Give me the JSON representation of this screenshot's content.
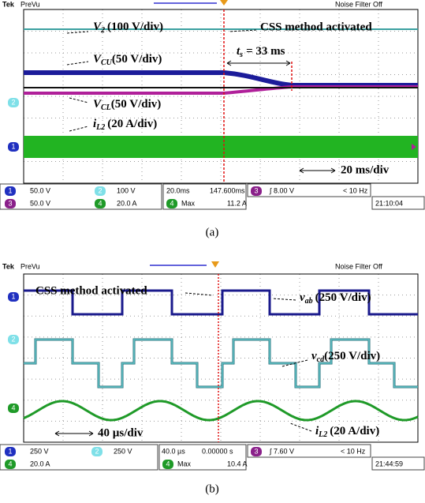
{
  "panel_a": {
    "header": {
      "brand": "Tek",
      "mode": "PreVu",
      "filter": "Noise Filter Off"
    },
    "markers": {
      "ch2": "2",
      "ch1": "1"
    },
    "annotations": {
      "v2": {
        "symbol": "V",
        "sub": "2",
        "scale": "(100 V/div)"
      },
      "css": "CSS method activated",
      "vcu": {
        "symbol": "V",
        "sub": "CU",
        "scale": "(50 V/div)"
      },
      "ts": {
        "symbol": "t",
        "sub": "s",
        "rest": "= 33 ms"
      },
      "vcl": {
        "symbol": "V",
        "sub": "CL",
        "scale": "(50 V/div)"
      },
      "il2": {
        "symbol": "i",
        "sub": "L2",
        "scale": "(20 A/div)"
      },
      "timebase": "20 ms/div"
    },
    "readout": {
      "ch1": {
        "num": "1",
        "scale": "50.0 V"
      },
      "ch2": {
        "num": "2",
        "scale": "100 V"
      },
      "ch3": {
        "num": "3",
        "scale": "50.0 V"
      },
      "ch4": {
        "num": "4",
        "scale": "20.0 A"
      },
      "time": "20.0ms",
      "position": "147.600ms",
      "trigger": {
        "num": "3",
        "level": "∫ 8.00 V"
      },
      "freq": "< 10 Hz",
      "meas": {
        "num": "4",
        "label": "Max",
        "value": "11.2 A"
      },
      "clock": "21:10:04"
    },
    "caption": "(a)"
  },
  "panel_b": {
    "header": {
      "brand": "Tek",
      "mode": "PreVu",
      "filter": "Noise Filter Off"
    },
    "markers": {
      "ch1": "1",
      "ch2": "2",
      "ch4": "4"
    },
    "annotations": {
      "css": "CSS method activated",
      "vab": {
        "symbol": "v",
        "sub": "ab",
        "scale": "(250 V/div)"
      },
      "vcd": {
        "symbol": "v",
        "sub": "cd",
        "scale": "(250 V/div)"
      },
      "il2": {
        "symbol": "i",
        "sub": "L2",
        "scale": "(20 A/div)"
      },
      "timebase": "40 µs/div"
    },
    "readout": {
      "ch1": {
        "num": "1",
        "scale": "250 V"
      },
      "ch2": {
        "num": "2",
        "scale": "250 V"
      },
      "ch4": {
        "num": "4",
        "scale": "20.0 A"
      },
      "time": "40.0 µs",
      "position": "0.00000 s",
      "trigger": {
        "num": "3",
        "level": "∫ 7.60 V"
      },
      "freq": "< 10 Hz",
      "meas": {
        "num": "4",
        "label": "Max",
        "value": "10.4 A"
      },
      "clock": "21:44:59"
    },
    "caption": "(b)"
  }
}
